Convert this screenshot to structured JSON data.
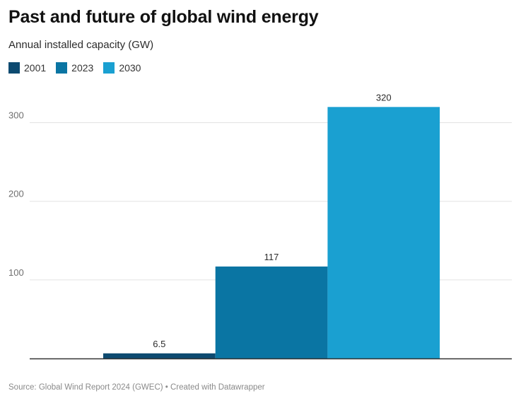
{
  "chart_data": {
    "type": "bar",
    "title": "Past and future of global wind energy",
    "subtitle": "Annual installed capacity (GW)",
    "categories": [
      "2001",
      "2023",
      "2030"
    ],
    "values": [
      6.5,
      117,
      320
    ],
    "value_labels": [
      "6.5",
      "117",
      "320"
    ],
    "yticks": [
      100,
      200,
      300
    ],
    "ylim": [
      0,
      330
    ],
    "grid": true,
    "legend": {
      "placement": "top-left",
      "entries": [
        "2001",
        "2023",
        "2030"
      ]
    },
    "colors": [
      "#0d4a70",
      "#0a75a3",
      "#1aa0d1"
    ],
    "source": "Source: Global Wind Report 2024 (GWEC) • Created with Datawrapper"
  }
}
